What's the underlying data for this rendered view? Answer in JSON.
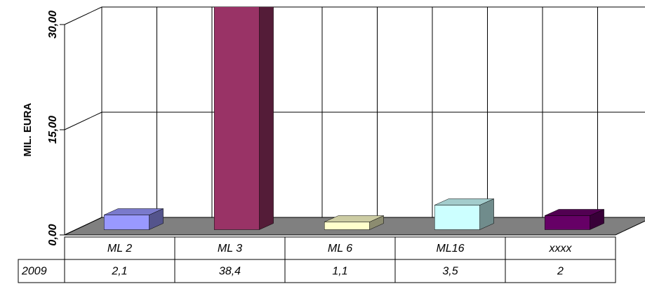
{
  "chart_data": {
    "type": "bar3d",
    "y_label": "MIL. EURA",
    "categories": [
      "ML 2",
      "ML 3",
      "ML 6",
      "ML16",
      "xxxx"
    ],
    "series": [
      {
        "name": "2009",
        "colors": [
          "#9999ff",
          "#993366",
          "#ffffcc",
          "#ccffff",
          "#660066"
        ],
        "values": [
          2.1,
          38.4,
          1.1,
          3.5,
          2
        ],
        "value_labels": [
          "2,1",
          "38,4",
          "1,1",
          "3,5",
          "2"
        ]
      }
    ],
    "ylim": [
      0,
      30
    ],
    "yticks": [
      {
        "value": 0,
        "label": "0,00"
      },
      {
        "value": 15,
        "label": "15,00"
      },
      {
        "value": 30,
        "label": "30,00"
      }
    ],
    "grid": true,
    "floor_color": "#808080"
  }
}
